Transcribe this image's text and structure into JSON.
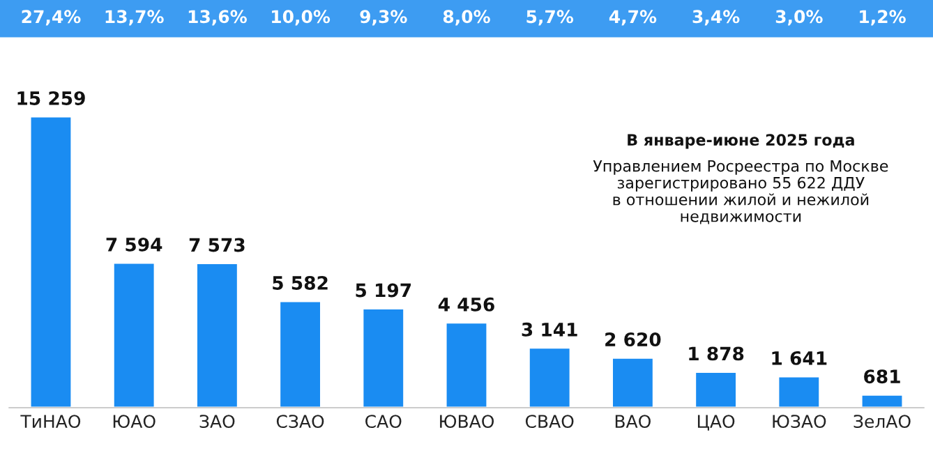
{
  "chart_data": {
    "type": "bar",
    "categories": [
      "ТиНАО",
      "ЮАО",
      "ЗАО",
      "СЗАО",
      "САО",
      "ЮВАО",
      "СВАО",
      "ВАО",
      "ЦАО",
      "ЮЗАО",
      "ЗелАО"
    ],
    "values": [
      15259,
      7594,
      7573,
      5582,
      5197,
      4456,
      3141,
      2620,
      1878,
      1641,
      681
    ],
    "value_labels": [
      "15 259",
      "7 594",
      "7 573",
      "5 582",
      "5 197",
      "4 456",
      "3 141",
      "2 620",
      "1 878",
      "1 641",
      "681"
    ],
    "color": "#1a8cf2",
    "annotations": [
      "В январе-июне 2025 года\nУправлением Росреестра по Москве\nзарегистрировано 55 622 ДДУ\nв отношении жилой и нежилой\nнедвижимости",
      "27,4%",
      "13,7%",
      "13,6%",
      "10,0%",
      "9,3%",
      "8,0%",
      "5,7%",
      "4,7%",
      "3,4%",
      "3,0%",
      "1,2%"
    ],
    "grid": false,
    "legend": false
  }
}
